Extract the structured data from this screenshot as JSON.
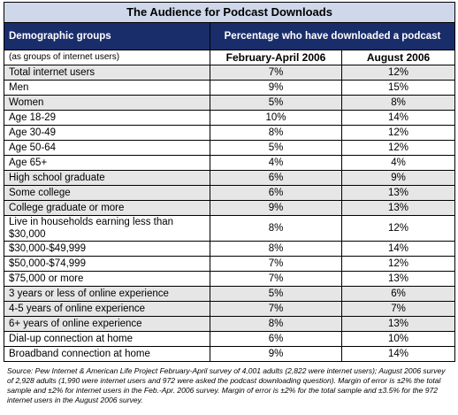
{
  "title": "The Audience for Podcast Downloads",
  "headers": {
    "groups": "Demographic groups",
    "percentage": "Percentage who have downloaded a podcast",
    "subgroup_label": "(as groups of internet users)",
    "col1": "February-April 2006",
    "col2": "August 2006"
  },
  "rows": [
    {
      "label": "Total internet users",
      "a": "7%",
      "b": "12%"
    },
    {
      "label": "Men",
      "a": "9%",
      "b": "15%"
    },
    {
      "label": "Women",
      "a": "5%",
      "b": "8%"
    },
    {
      "label": "Age 18-29",
      "a": "10%",
      "b": "14%"
    },
    {
      "label": "Age 30-49",
      "a": "8%",
      "b": "12%"
    },
    {
      "label": "Age 50-64",
      "a": "5%",
      "b": "12%"
    },
    {
      "label": "Age 65+",
      "a": "4%",
      "b": "4%"
    },
    {
      "label": "High school graduate",
      "a": "6%",
      "b": "9%"
    },
    {
      "label": "Some college",
      "a": "6%",
      "b": "13%"
    },
    {
      "label": "College graduate or more",
      "a": "9%",
      "b": "13%"
    },
    {
      "label": "Live in households earning less than $30,000",
      "a": "8%",
      "b": "12%"
    },
    {
      "label": "$30,000-$49,999",
      "a": "8%",
      "b": "14%"
    },
    {
      "label": "$50,000-$74,999",
      "a": "7%",
      "b": "12%"
    },
    {
      "label": "$75,000 or more",
      "a": "7%",
      "b": "13%"
    },
    {
      "label": "3 years or less of online experience",
      "a": "5%",
      "b": "6%"
    },
    {
      "label": "4-5 years of online experience",
      "a": "7%",
      "b": "7%"
    },
    {
      "label": "6+ years of online experience",
      "a": "8%",
      "b": "13%"
    },
    {
      "label": "Dial-up connection at home",
      "a": "6%",
      "b": "10%"
    },
    {
      "label": "Broadband connection at home",
      "a": "9%",
      "b": "14%"
    }
  ],
  "source_note": "Source: Pew Internet & American Life Project February-April survey of 4,001 adults (2,822 were internet users); August 2006 survey of 2,928 adults (1,990 were internet users and 972 were asked the podcast downloading question). Margin of error is ±2% the total sample and ±2% for internet users in the Feb.-Apr. 2006 survey. Margin of error is ±2% for the total sample and ±3.5% for the 972 internet users in the August 2006 survey.",
  "colors": {
    "title_bg": "#cfd8ea",
    "header_bg": "#1a2d6b",
    "shade": "#e6e6e6"
  }
}
